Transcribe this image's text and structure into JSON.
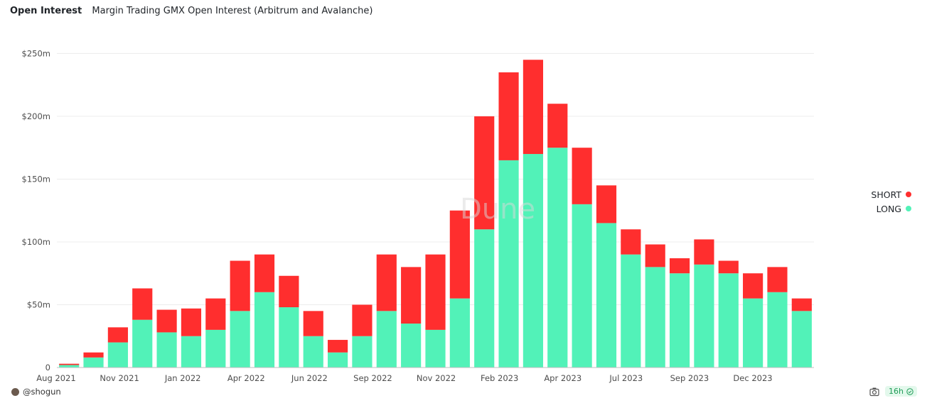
{
  "header": {
    "title": "Open Interest",
    "subtitle": "Margin Trading GMX Open Interest (Arbitrum and Avalanche)"
  },
  "footer": {
    "author": "@shogun",
    "age": "16h"
  },
  "icons": {
    "camera": "camera-icon",
    "check": "check-circle-icon",
    "avatar": "avatar"
  },
  "colors": {
    "long": "#52f2b8",
    "short": "#ff2e2e",
    "grid": "#ececec",
    "axis_text": "#4d4d4d"
  },
  "chart_data": {
    "type": "bar",
    "stacked": true,
    "title": "",
    "xlabel": "",
    "ylabel": "",
    "ylim": [
      0,
      270000000
    ],
    "yticks": [
      0,
      50000000,
      100000000,
      150000000,
      200000000,
      250000000
    ],
    "ytick_labels": [
      "0",
      "$50m",
      "$100m",
      "$150m",
      "$200m",
      "$250m"
    ],
    "xtick_labels": [
      "Aug 2021",
      "Nov 2021",
      "Jan 2022",
      "Apr 2022",
      "Jun 2022",
      "Sep 2022",
      "Nov 2022",
      "Feb 2023",
      "Apr 2023",
      "Jul 2023",
      "Sep 2023",
      "Dec 2023"
    ],
    "grid": true,
    "legend_position": "right",
    "x": [
      "2021-08",
      "2021-09",
      "2021-10",
      "2021-11",
      "2021-12",
      "2022-01",
      "2022-02",
      "2022-03",
      "2022-04",
      "2022-05",
      "2022-06",
      "2022-07",
      "2022-08",
      "2022-09",
      "2022-10",
      "2022-11",
      "2022-12",
      "2023-01",
      "2023-02",
      "2023-03",
      "2023-04",
      "2023-05",
      "2023-06",
      "2023-07",
      "2023-08",
      "2023-09",
      "2023-10",
      "2023-11",
      "2023-12",
      "2024-01",
      "2024-02"
    ],
    "series": [
      {
        "name": "LONG",
        "color": "#52f2b8",
        "values": [
          2000000,
          8000000,
          20000000,
          38000000,
          28000000,
          25000000,
          30000000,
          45000000,
          60000000,
          48000000,
          25000000,
          12000000,
          25000000,
          45000000,
          35000000,
          30000000,
          55000000,
          110000000,
          165000000,
          170000000,
          175000000,
          130000000,
          115000000,
          90000000,
          80000000,
          75000000,
          82000000,
          75000000,
          55000000,
          60000000,
          45000000
        ]
      },
      {
        "name": "SHORT",
        "color": "#ff2e2e",
        "values": [
          1000000,
          4000000,
          12000000,
          25000000,
          18000000,
          22000000,
          25000000,
          40000000,
          30000000,
          25000000,
          20000000,
          10000000,
          25000000,
          45000000,
          45000000,
          60000000,
          70000000,
          90000000,
          70000000,
          75000000,
          35000000,
          45000000,
          30000000,
          20000000,
          18000000,
          12000000,
          20000000,
          10000000,
          20000000,
          20000000,
          10000000
        ]
      }
    ]
  }
}
